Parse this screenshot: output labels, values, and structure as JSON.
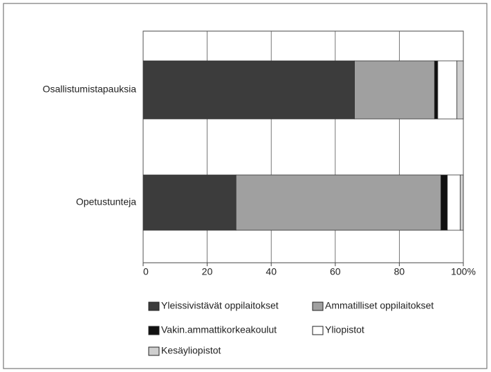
{
  "chart_data": {
    "type": "stacked-barh",
    "categories": [
      "Osallistumistapauksia",
      "Opetustunteja"
    ],
    "series": [
      {
        "name": "Yleissivistävät oppilaitokset",
        "color": "#3c3c3c",
        "values": [
          66,
          29
        ]
      },
      {
        "name": "Ammatilliset oppilaitokset",
        "color": "#a0a0a0",
        "values": [
          25,
          64
        ]
      },
      {
        "name": "Vakin.ammattikorkeakoulut",
        "color": "#111111",
        "values": [
          1,
          2
        ]
      },
      {
        "name": "Yliopistot",
        "color": "#ffffff",
        "values": [
          6,
          4
        ]
      },
      {
        "name": "Kesäyliopistot",
        "color": "#cfcfcf",
        "values": [
          2,
          1
        ]
      }
    ],
    "xlim": [
      0,
      100
    ],
    "xticks": [
      0,
      20,
      40,
      60,
      80,
      {
        "value": 100,
        "label": "100%"
      }
    ],
    "grid": true
  }
}
